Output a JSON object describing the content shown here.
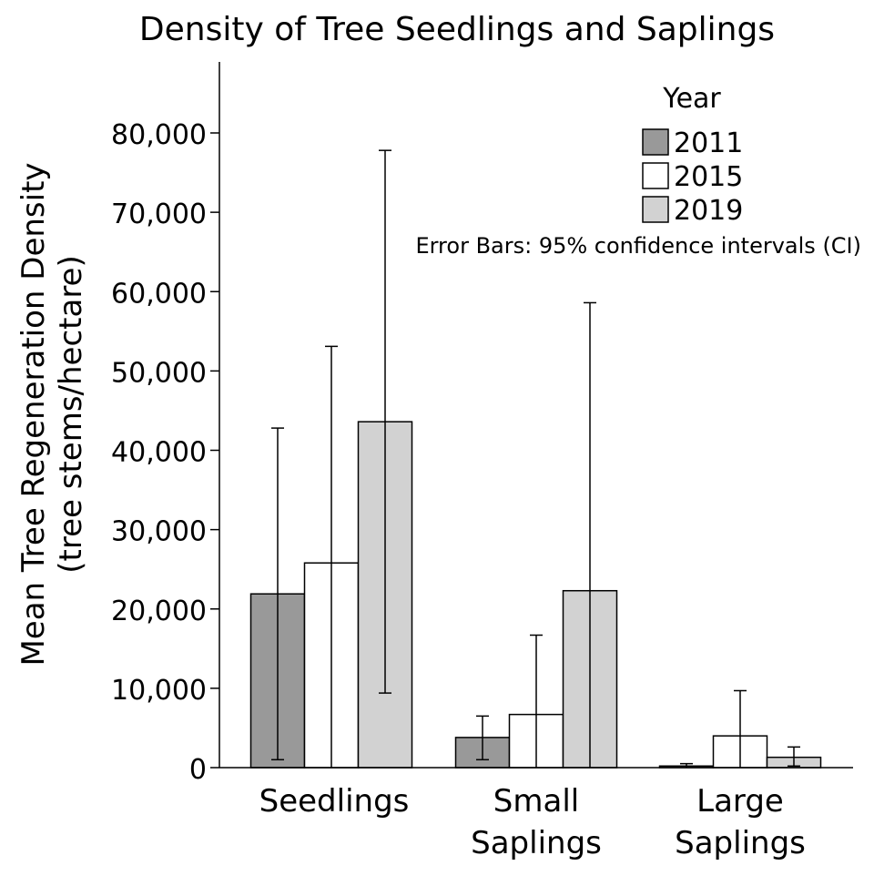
{
  "chart_data": {
    "type": "bar",
    "title": "Density of Tree Seedlings and Saplings",
    "xlabel": "",
    "ylabel_lines": [
      "Mean Tree Regeneration Density",
      "(tree stems/hectare)"
    ],
    "ylim": [
      0,
      89000
    ],
    "yticks": [
      0,
      10000,
      20000,
      30000,
      40000,
      50000,
      60000,
      70000,
      80000
    ],
    "ytick_labels": [
      "0",
      "10,000",
      "20,000",
      "30,000",
      "40,000",
      "50,000",
      "60,000",
      "70,000",
      "80,000"
    ],
    "categories": [
      {
        "label_lines": [
          "Seedlings"
        ]
      },
      {
        "label_lines": [
          "Small",
          "Saplings"
        ]
      },
      {
        "label_lines": [
          "Large",
          "Saplings"
        ]
      }
    ],
    "legend": {
      "title": "Year",
      "position": "top-right"
    },
    "series": [
      {
        "name": "2011",
        "color": "#999999",
        "values": [
          21900,
          3800,
          200
        ],
        "ci_low": [
          1000,
          1000,
          0
        ],
        "ci_high": [
          42800,
          6500,
          500
        ]
      },
      {
        "name": "2015",
        "color": "#ffffff",
        "values": [
          25800,
          6700,
          4000
        ],
        "ci_low": [
          0,
          0,
          0
        ],
        "ci_high": [
          53100,
          16700,
          9700
        ]
      },
      {
        "name": "2019",
        "color": "#d2d2d2",
        "values": [
          43600,
          22300,
          1300
        ],
        "ci_low": [
          9400,
          0,
          200
        ],
        "ci_high": [
          77800,
          58600,
          2600
        ]
      }
    ],
    "annotation": "Error Bars: 95% confidence intervals (CI)",
    "grid": false
  }
}
